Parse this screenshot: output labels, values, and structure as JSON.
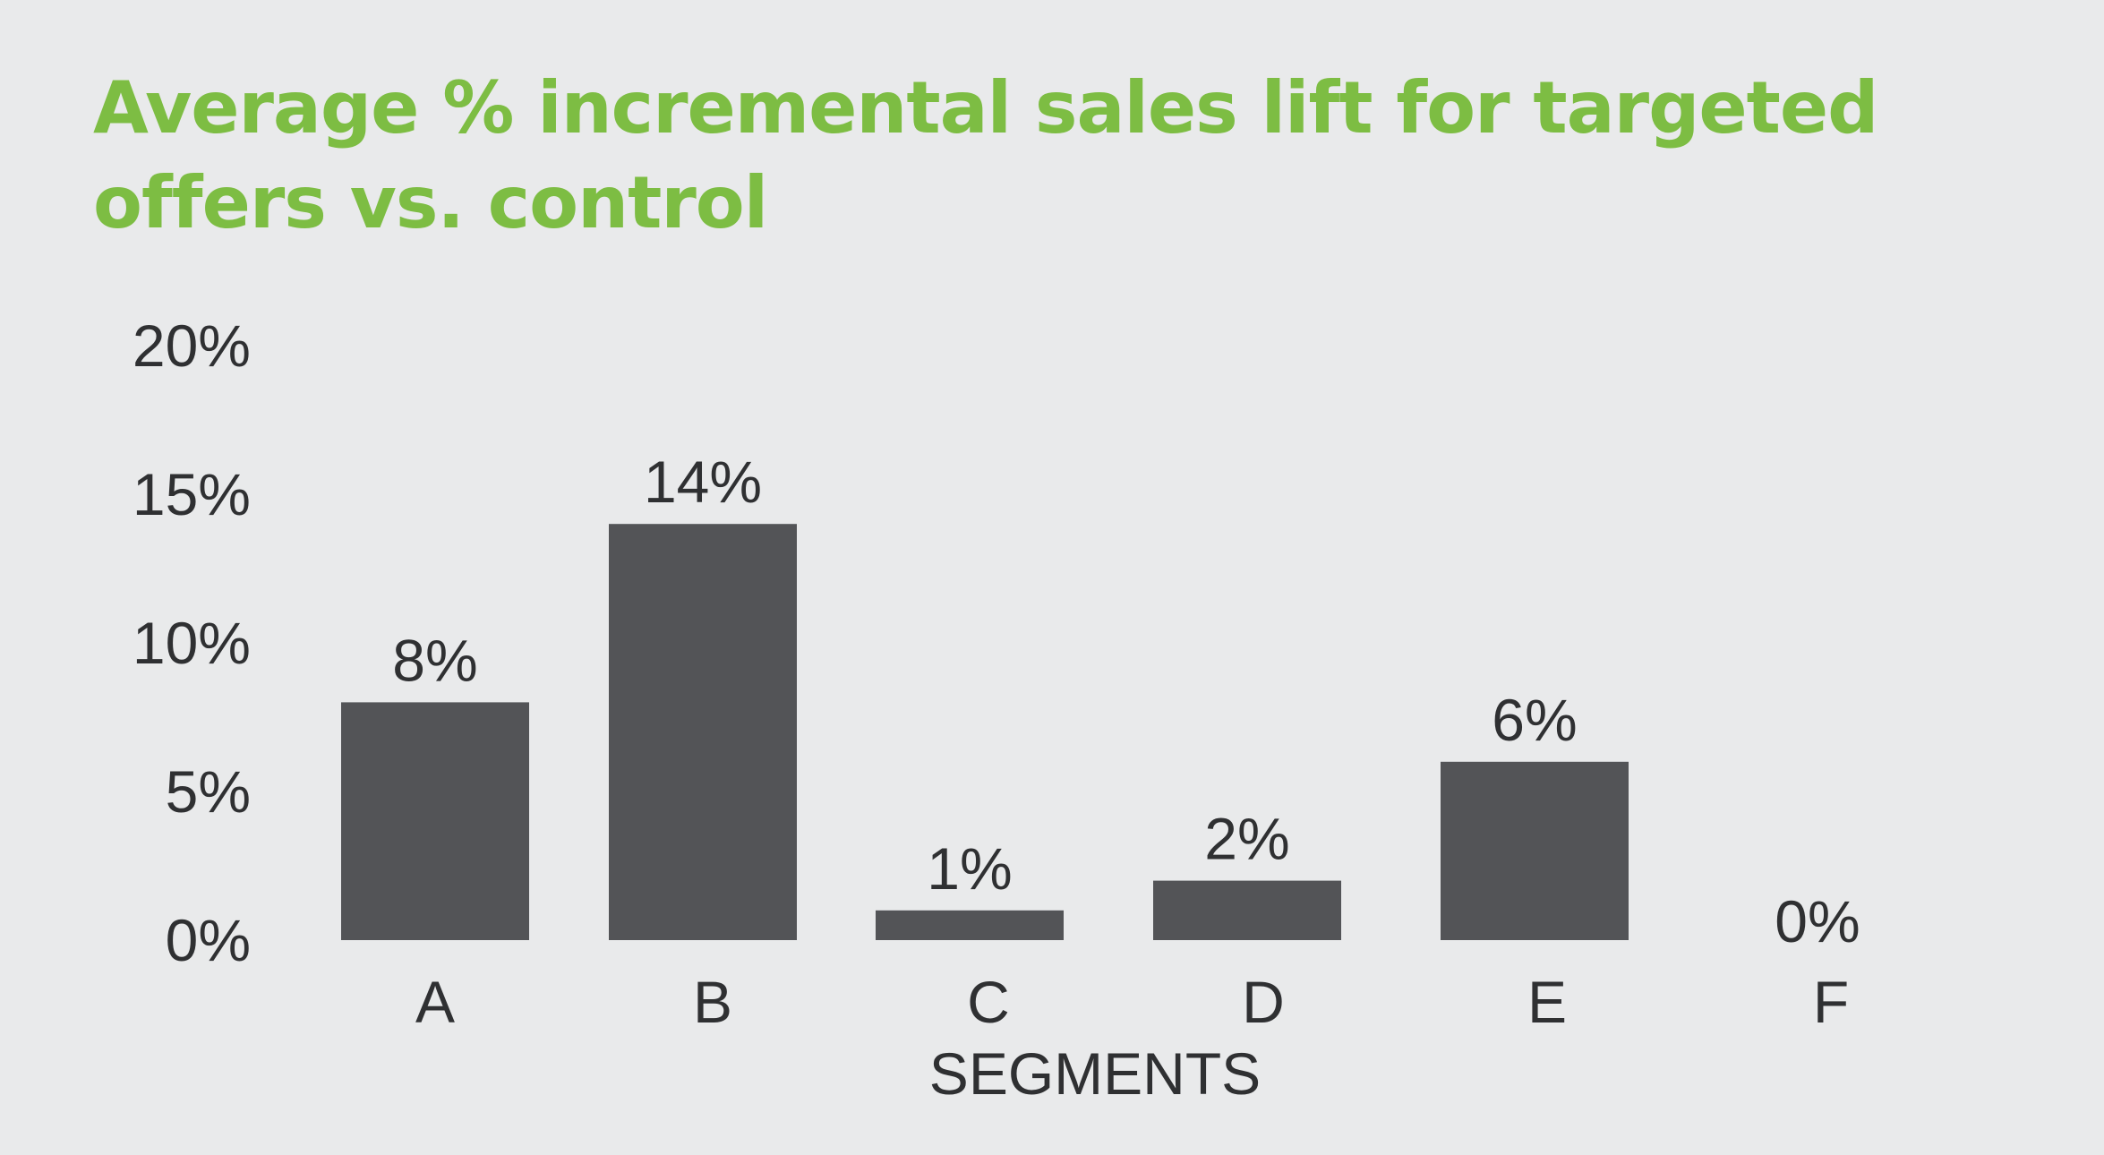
{
  "colors": {
    "background": "#e9eaeb",
    "title": "#7dbd43",
    "bar": "#535457",
    "text": "#2f3032"
  },
  "chart_data": {
    "type": "bar",
    "title": "Average % incremental sales lift for targeted offers vs. control",
    "xlabel": "SEGMENTS",
    "ylabel": "",
    "categories": [
      "A",
      "B",
      "C",
      "D",
      "E",
      "F"
    ],
    "values": [
      8,
      14,
      1,
      2,
      6,
      0
    ],
    "value_labels": [
      "8%",
      "14%",
      "1%",
      "2%",
      "6%",
      "0%"
    ],
    "ylim": [
      0,
      20
    ],
    "yticks": [
      0,
      5,
      10,
      15,
      20
    ],
    "ytick_labels": [
      "0%",
      "5%",
      "10%",
      "15%",
      "20%"
    ],
    "grid": false,
    "legend": "none"
  }
}
